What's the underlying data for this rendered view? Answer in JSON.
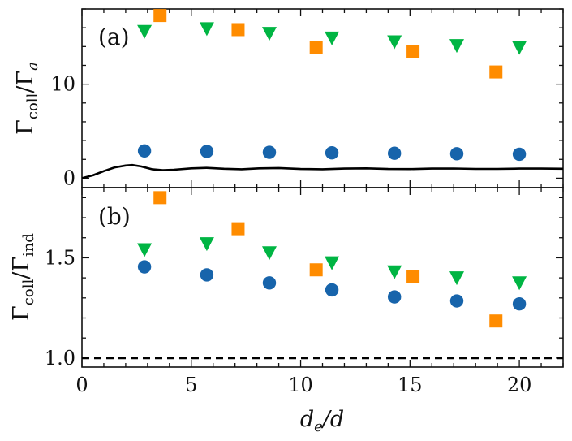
{
  "chart_data": [
    {
      "panel": "(a)",
      "type": "scatter",
      "ylabel_main": "Γ",
      "ylabel_sub": "coll",
      "ylabel_den": "Γ",
      "ylabel_den_sub": "a",
      "ylim": [
        -1,
        18
      ],
      "xlim": [
        0,
        22
      ],
      "yticks": [
        0,
        10
      ],
      "ytick_labels": [
        "0",
        "10"
      ],
      "series": [
        {
          "name": "circles",
          "marker": "circle",
          "color": "#1764ab",
          "x": [
            2.86,
            5.71,
            8.57,
            11.43,
            14.29,
            17.14,
            20.0
          ],
          "y": [
            2.9,
            2.85,
            2.75,
            2.7,
            2.65,
            2.6,
            2.55
          ]
        },
        {
          "name": "squares",
          "marker": "square",
          "color": "#ff8c00",
          "x": [
            3.57,
            7.14,
            10.71,
            15.14,
            18.93
          ],
          "y": [
            17.3,
            15.8,
            13.9,
            13.5,
            11.3
          ]
        },
        {
          "name": "triangles",
          "marker": "triangle-down",
          "color": "#00b543",
          "x": [
            2.86,
            5.71,
            8.57,
            11.43,
            14.29,
            17.14,
            20.0
          ],
          "y": [
            15.6,
            15.9,
            15.4,
            14.9,
            14.5,
            14.1,
            13.9
          ]
        },
        {
          "name": "curve",
          "type": "line",
          "color": "#000000",
          "x": [
            0,
            0.5,
            1.0,
            1.5,
            2.0,
            2.3,
            2.7,
            3.2,
            3.7,
            4.2,
            5.0,
            5.7,
            6.5,
            7.3,
            8.1,
            9.0,
            10.0,
            11.0,
            12.0,
            13.0,
            14.0,
            15.0,
            16.0,
            17.0,
            18.0,
            19.0,
            20.0,
            21.0,
            22.0
          ],
          "y": [
            0.0,
            0.3,
            0.75,
            1.15,
            1.35,
            1.4,
            1.25,
            0.95,
            0.85,
            0.9,
            1.05,
            1.1,
            1.0,
            0.95,
            1.05,
            1.08,
            0.98,
            0.95,
            1.02,
            1.05,
            0.98,
            0.97,
            1.02,
            1.03,
            0.99,
            0.99,
            1.02,
            1.02,
            1.0
          ]
        }
      ]
    },
    {
      "panel": "(b)",
      "type": "scatter",
      "ylabel_main": "Γ",
      "ylabel_sub": "coll",
      "ylabel_den": "Γ",
      "ylabel_den_sub": "ind",
      "ylim": [
        0.955,
        1.85
      ],
      "xlim": [
        0,
        22
      ],
      "yticks": [
        1.0,
        1.5
      ],
      "ytick_labels": [
        "1.0",
        "1.5"
      ],
      "series": [
        {
          "name": "circles",
          "marker": "circle",
          "color": "#1764ab",
          "x": [
            2.86,
            5.71,
            8.57,
            11.43,
            14.29,
            17.14,
            20.0
          ],
          "y": [
            1.455,
            1.415,
            1.375,
            1.34,
            1.305,
            1.285,
            1.27
          ]
        },
        {
          "name": "squares",
          "marker": "square",
          "color": "#ff8c00",
          "x": [
            3.57,
            7.14,
            10.71,
            15.14,
            18.93
          ],
          "y": [
            1.8,
            1.645,
            1.44,
            1.405,
            1.185
          ]
        },
        {
          "name": "triangles",
          "marker": "triangle-down",
          "color": "#00b543",
          "x": [
            2.86,
            5.71,
            8.57,
            11.43,
            14.29,
            17.14,
            20.0
          ],
          "y": [
            1.54,
            1.57,
            1.525,
            1.475,
            1.43,
            1.4,
            1.375
          ]
        },
        {
          "name": "reference",
          "type": "hline",
          "style": "dashed",
          "color": "#000000",
          "y": [
            1.0
          ]
        }
      ]
    }
  ],
  "xaxis": {
    "label_main": "d",
    "label_sub": "e",
    "label_rest": "/d",
    "ticks": [
      0,
      5,
      10,
      15,
      20
    ],
    "tick_labels": [
      "0",
      "5",
      "10",
      "15",
      "20"
    ]
  }
}
